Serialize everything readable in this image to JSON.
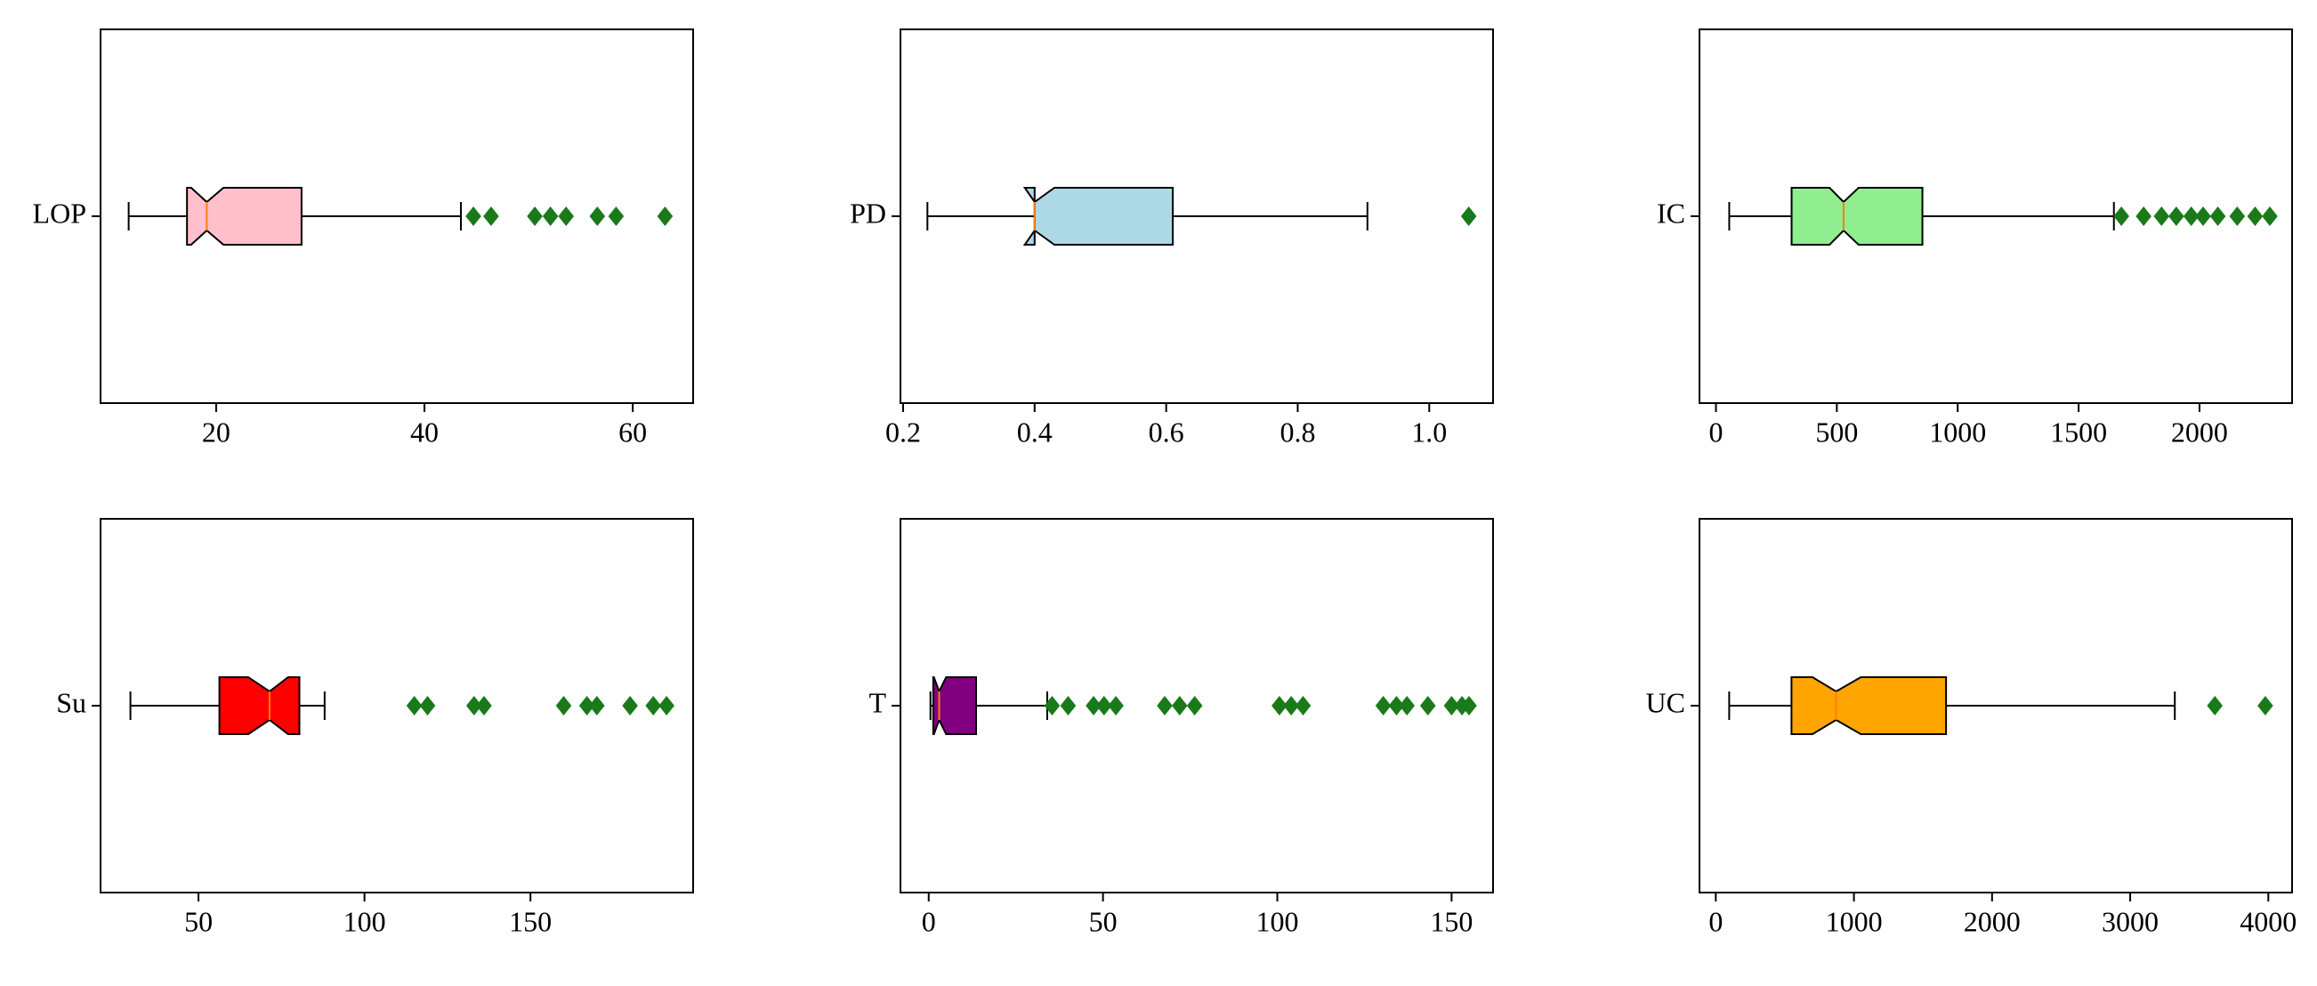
{
  "chart_data": [
    {
      "type": "box",
      "categories": [
        "LOP"
      ],
      "whislo": 11.6,
      "q1": 17.2,
      "median": 19.1,
      "q3": 28.2,
      "whishi": 43.5,
      "notch": [
        17.6,
        20.7
      ],
      "fliers": [
        44.7,
        46.4,
        50.6,
        52.1,
        53.6,
        56.6,
        58.4,
        63.1
      ],
      "color": "#ffc0cb",
      "flier_color": "#1a7a1a",
      "median_color": "#ff7f0e",
      "xlim": [
        8.9,
        65.8
      ],
      "xticks": [
        20,
        40,
        60
      ]
    },
    {
      "type": "box",
      "categories": [
        "PD"
      ],
      "whislo": 0.237,
      "q1": 0.4,
      "median": 0.4,
      "q3": 0.61,
      "whishi": 0.906,
      "notch": [
        0.385,
        0.43
      ],
      "fliers": [
        1.06
      ],
      "color": "#add8e6",
      "flier_color": "#1a7a1a",
      "median_color": "#ff7f0e",
      "xlim": [
        0.196,
        1.097
      ],
      "xticks": [
        0.2,
        0.4,
        0.6,
        0.8,
        {
          "value": 1,
          "label": "1.0"
        }
      ]
    },
    {
      "type": "box",
      "categories": [
        "IC"
      ],
      "whislo": 55,
      "q1": 313,
      "median": 528,
      "q3": 854,
      "whishi": 1646,
      "notch": [
        470,
        590
      ],
      "fliers": [
        1677,
        1769,
        1843,
        1904,
        1966,
        2015,
        2076,
        2156,
        2230,
        2291
      ],
      "color": "#90ee90",
      "flier_color": "#1a7a1a",
      "median_color": "#ff7f0e",
      "xlim": [
        -68,
        2383
      ],
      "xticks": [
        0,
        500,
        1000,
        1500,
        2000
      ]
    },
    {
      "type": "box",
      "categories": [
        "Su"
      ],
      "whislo": 29.5,
      "q1": 56.3,
      "median": 71.4,
      "q3": 80.4,
      "whishi": 88,
      "notch": [
        65,
        77
      ],
      "fliers": [
        115,
        119,
        133,
        136,
        160,
        167,
        170,
        180,
        187,
        191
      ],
      "color": "#ff0000",
      "flier_color": "#1a7a1a",
      "median_color": "#ff7f0e",
      "xlim": [
        20.5,
        199
      ],
      "xticks": [
        50,
        100,
        150
      ]
    },
    {
      "type": "box",
      "categories": [
        "T"
      ],
      "whislo": 0.5,
      "q1": 1.3,
      "median": 3,
      "q3": 13.6,
      "whishi": 34,
      "notch": [
        1.5,
        5
      ],
      "fliers": [
        35.4,
        40,
        47.3,
        50.3,
        53.7,
        67.7,
        72,
        76.3,
        100.6,
        104,
        107.4,
        130.4,
        134.2,
        137.2,
        143.2,
        150,
        153,
        155
      ],
      "color": "#800080",
      "flier_color": "#1a7a1a",
      "median_color": "#ff7f0e",
      "xlim": [
        -8.1,
        161.9
      ],
      "xticks": [
        0,
        50,
        100,
        150
      ]
    },
    {
      "type": "box",
      "categories": [
        "UC"
      ],
      "whislo": 97,
      "q1": 548,
      "median": 871,
      "q3": 1667,
      "whishi": 3323,
      "notch": [
        700,
        1050
      ],
      "fliers": [
        3613,
        3978
      ],
      "color": "#ffa500",
      "flier_color": "#1a7a1a",
      "median_color": "#ff7f0e",
      "xlim": [
        -118,
        4172
      ],
      "xticks": [
        0,
        1000,
        2000,
        3000,
        4000
      ]
    }
  ]
}
